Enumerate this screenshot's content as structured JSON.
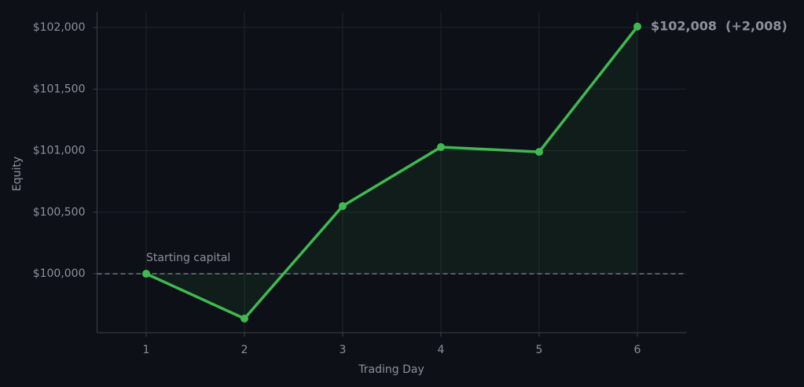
{
  "chart_data": {
    "type": "line",
    "x_label": "Trading Day",
    "y_label": "Equity",
    "x": [
      1,
      2,
      3,
      4,
      5,
      6
    ],
    "series": [
      {
        "name": "Equity",
        "color": "#3fb950",
        "values": [
          100000,
          99636,
          100550,
          101029,
          100990,
          102008
        ]
      }
    ],
    "xlim": [
      0.5,
      6.5
    ],
    "xticks": [
      1,
      2,
      3,
      4,
      5,
      6
    ],
    "ylim": [
      99521,
      102128
    ],
    "yticks": [
      {
        "value": 100000,
        "label": "$100,000"
      },
      {
        "value": 100500,
        "label": "$100,500"
      },
      {
        "value": 101000,
        "label": "$101,000"
      },
      {
        "value": 101500,
        "label": "$101,500"
      },
      {
        "value": 102000,
        "label": "$102,000"
      }
    ],
    "grid": true,
    "baseline": 100000,
    "baseline_label": "Starting capital",
    "end_label": "$102,008  (+2,008)"
  }
}
